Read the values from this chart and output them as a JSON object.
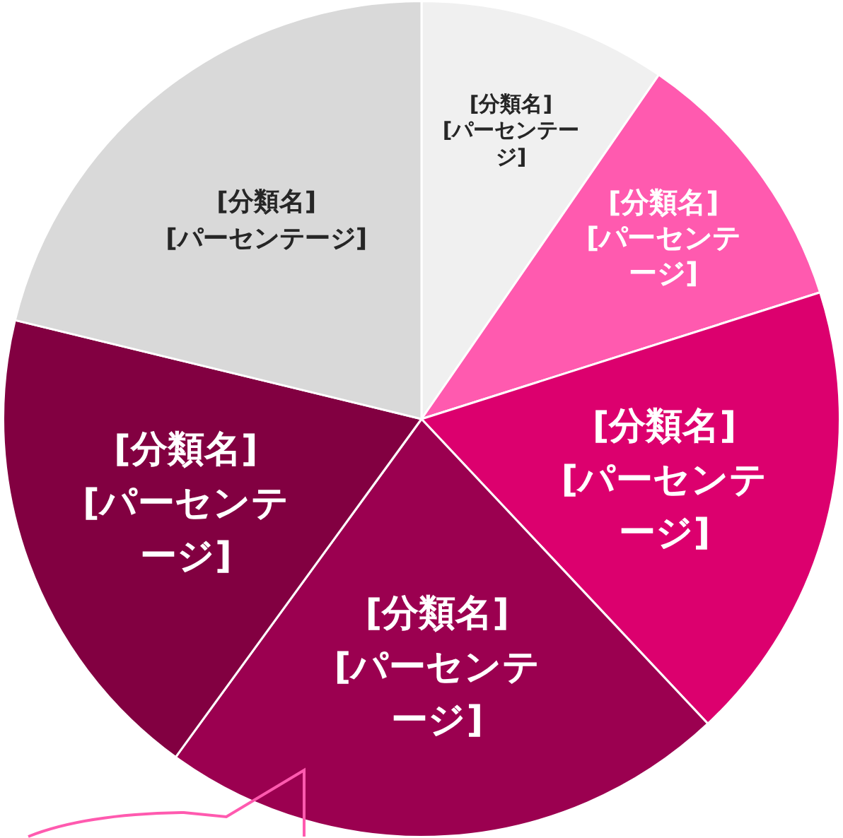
{
  "chart_data": {
    "type": "pie",
    "categories": [
      "[分類名]",
      "[分類名]",
      "[分類名]",
      "[分類名]",
      "[分類名]",
      "[分類名]"
    ],
    "values": [
      9.6,
      10.5,
      17.9,
      22.0,
      18.8,
      21.2
    ],
    "colors": [
      "#f0f0f0",
      "#ff5aaf",
      "#dc006e",
      "#9b0050",
      "#820041",
      "#d9d9d9"
    ],
    "value_labels": [
      "[パーセンテージ]",
      "[パーセンテージ]",
      "[パーセンテージ]",
      "[パーセンテージ]",
      "[パーセンテージ]",
      "[パーセンテージ]"
    ],
    "legend": false
  }
}
